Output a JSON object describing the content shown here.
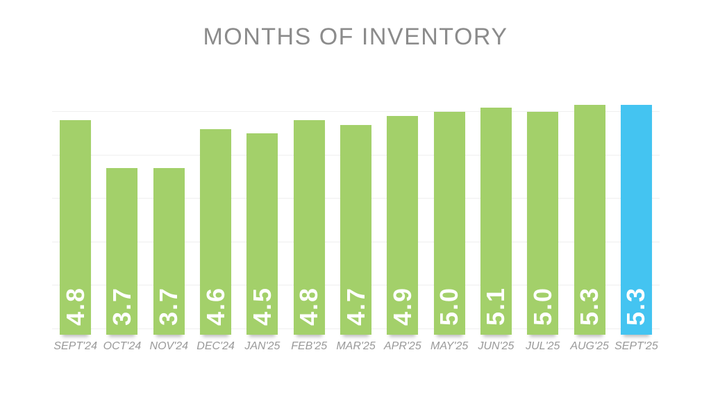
{
  "title": "MONTHS OF INVENTORY",
  "chart_data": {
    "type": "bar",
    "title": "MONTHS OF INVENTORY",
    "categories": [
      "SEPT'24",
      "OCT'24",
      "NOV'24",
      "DEC'24",
      "JAN'25",
      "FEB'25",
      "MAR'25",
      "APR'25",
      "MAY'25",
      "JUN'25",
      "JUL'25",
      "AUG'25",
      "SEPT'25"
    ],
    "values": [
      4.8,
      3.7,
      3.7,
      4.6,
      4.5,
      4.8,
      4.7,
      4.9,
      5.0,
      5.1,
      5.0,
      5.3,
      5.3
    ],
    "value_labels": [
      "4.8",
      "3.7",
      "3.7",
      "4.6",
      "4.5",
      "4.8",
      "4.7",
      "4.9",
      "5.0",
      "5.1",
      "5.0",
      "5.3",
      "5.3"
    ],
    "xlabel": "",
    "ylabel": "",
    "ylim": [
      0,
      5.5
    ],
    "grid": true,
    "legend": false,
    "highlight_index": 12,
    "colors": {
      "bar_default": "#a3d06a",
      "bar_highlight": "#44c4f1",
      "value_label": "#ffffff",
      "title_text": "#8b8b8b",
      "axis_label_text": "#999999",
      "gridline": "#efefef"
    }
  }
}
